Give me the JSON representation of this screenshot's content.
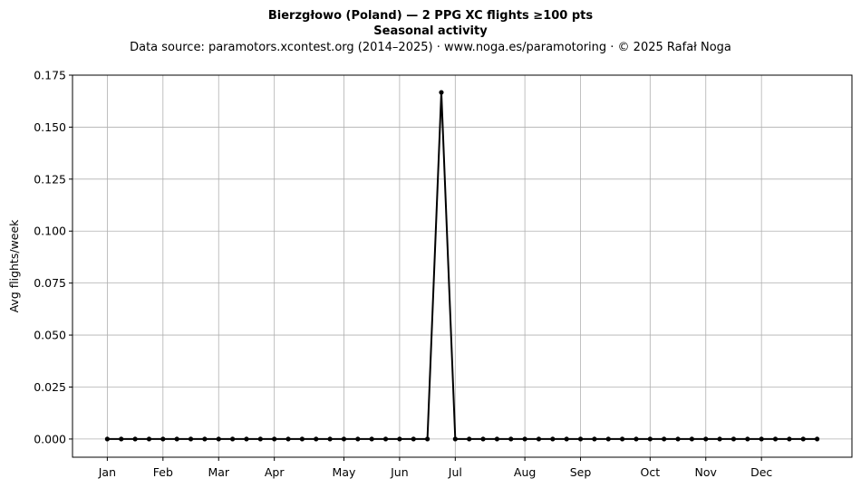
{
  "chart_data": {
    "type": "line",
    "title": "Bierzgłowo (Poland)  —  2 PPG XC flights ≥100 pts",
    "subtitle": "Seasonal activity",
    "source_line": "Data source: paramotors.xcontest.org (2014–2025)  ·  www.noga.es/paramotoring  ·  © 2025 Rafał Noga",
    "xlabel": "",
    "ylabel": "Avg flights/week",
    "xlim": [
      -2.5,
      53.5
    ],
    "ylim": [
      -0.00875,
      0.175
    ],
    "yticks": [
      0.0,
      0.025,
      0.05,
      0.075,
      0.1,
      0.125,
      0.15,
      0.175
    ],
    "ytick_labels": [
      "0.000",
      "0.025",
      "0.050",
      "0.075",
      "0.100",
      "0.125",
      "0.150",
      "0.175"
    ],
    "xticks": [
      0,
      4,
      8,
      12,
      17,
      21,
      25,
      30,
      34,
      39,
      43,
      47
    ],
    "xtick_labels": [
      "Jan",
      "Feb",
      "Mar",
      "Apr",
      "May",
      "Jun",
      "Jul",
      "Aug",
      "Sep",
      "Oct",
      "Nov",
      "Dec"
    ],
    "grid": true,
    "line_color": "#000000",
    "grid_color": "#b0b0b0",
    "series": [
      {
        "x": [
          0,
          1,
          2,
          3,
          4,
          5,
          6,
          7,
          8,
          9,
          10,
          11,
          12,
          13,
          14,
          15,
          16,
          17,
          18,
          19,
          20,
          21,
          22,
          23,
          24,
          25,
          26,
          27,
          28,
          29,
          30,
          31,
          32,
          33,
          34,
          35,
          36,
          37,
          38,
          39,
          40,
          41,
          42,
          43,
          44,
          45,
          46,
          47,
          48,
          49,
          50,
          51
        ],
        "values": [
          0,
          0,
          0,
          0,
          0,
          0,
          0,
          0,
          0,
          0,
          0,
          0,
          0,
          0,
          0,
          0,
          0,
          0,
          0,
          0,
          0,
          0,
          0,
          0,
          0.1667,
          0,
          0,
          0,
          0,
          0,
          0,
          0,
          0,
          0,
          0,
          0,
          0,
          0,
          0,
          0,
          0,
          0,
          0,
          0,
          0,
          0,
          0,
          0,
          0,
          0,
          0,
          0
        ]
      }
    ]
  }
}
